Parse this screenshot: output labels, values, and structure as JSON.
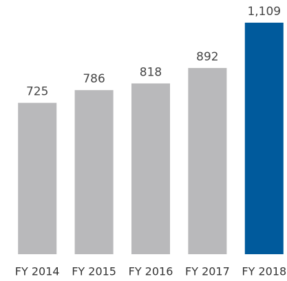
{
  "chart_data": {
    "type": "bar",
    "categories": [
      "FY 2014",
      "FY 2015",
      "FY 2016",
      "FY 2017",
      "FY 2018"
    ],
    "values": [
      725,
      786,
      818,
      892,
      1109
    ],
    "value_labels": [
      "725",
      "786",
      "818",
      "892",
      "1,109"
    ],
    "colors": [
      "#b9b9bb",
      "#b9b9bb",
      "#b9b9bb",
      "#b9b9bb",
      "#005a9c"
    ]
  }
}
